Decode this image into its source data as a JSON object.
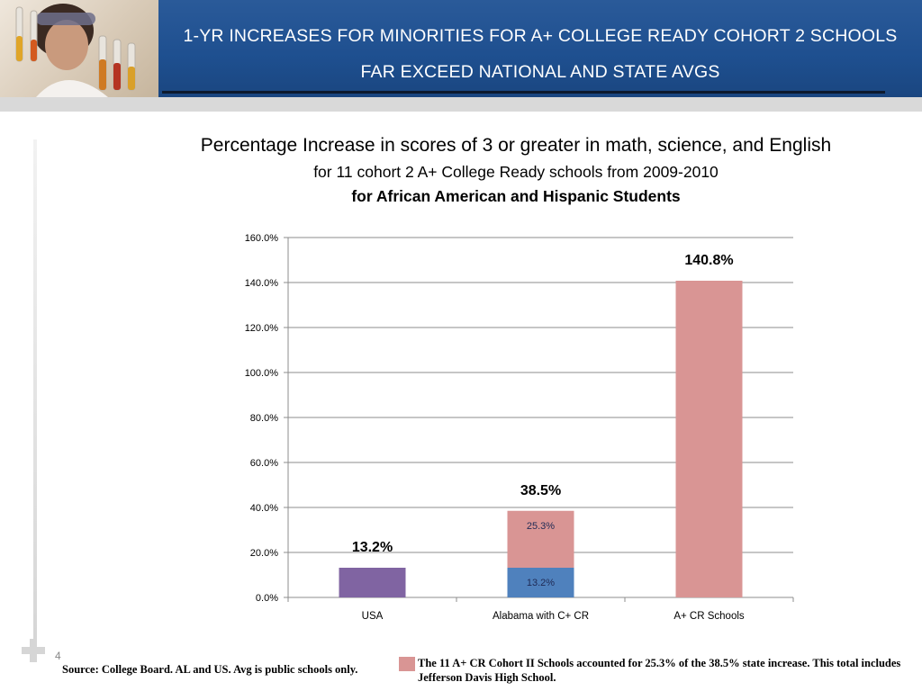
{
  "banner": {
    "title_line1": "1-YR INCREASES FOR MINORITIES FOR A+ COLLEGE READY COHORT 2 SCHOOLS",
    "title_line2": "FAR EXCEED NATIONAL AND STATE AVGS"
  },
  "slide_number": "4",
  "chart_data": {
    "type": "bar",
    "title": "Percentage Increase in scores of 3 or greater in math, science, and English",
    "subtitle": "for 11 cohort 2 A+ College Ready schools from 2009-2010",
    "subtitle_bold": "for African American and Hispanic Students",
    "categories": [
      "USA",
      "Alabama with C+ CR",
      "A+ CR Schools"
    ],
    "y_ticks": [
      "0.0%",
      "20.0%",
      "40.0%",
      "60.0%",
      "80.0%",
      "100.0%",
      "120.0%",
      "140.0%",
      "160.0%"
    ],
    "ylim": [
      0,
      160
    ],
    "grid": true,
    "segments": [
      {
        "category": "USA",
        "value": 13.2,
        "base": 0,
        "color": "#8064a2",
        "label": ""
      },
      {
        "category": "Alabama with C+ CR",
        "value": 13.2,
        "base": 0,
        "color": "#4f81bd",
        "label": "13.2%"
      },
      {
        "category": "Alabama with C+ CR",
        "value": 25.3,
        "base": 13.2,
        "color": "#d99594",
        "label": "25.3%"
      },
      {
        "category": "A+ CR Schools",
        "value": 140.8,
        "base": 0,
        "color": "#d99594",
        "label": ""
      }
    ],
    "totals": [
      {
        "category": "USA",
        "value": 13.2,
        "label": "13.2%"
      },
      {
        "category": "Alabama with C+ CR",
        "value": 38.5,
        "label": "38.5%"
      },
      {
        "category": "A+ CR Schools",
        "value": 140.8,
        "label": "140.8%"
      }
    ]
  },
  "footer": {
    "source": "Source: College Board.  AL and US. Avg is public schools only.",
    "note": "The 11 A+ CR Cohort II Schools accounted for 25.3% of the 38.5%  state increase. This total includes Jefferson Davis High School.",
    "note_color": "#d99594"
  }
}
